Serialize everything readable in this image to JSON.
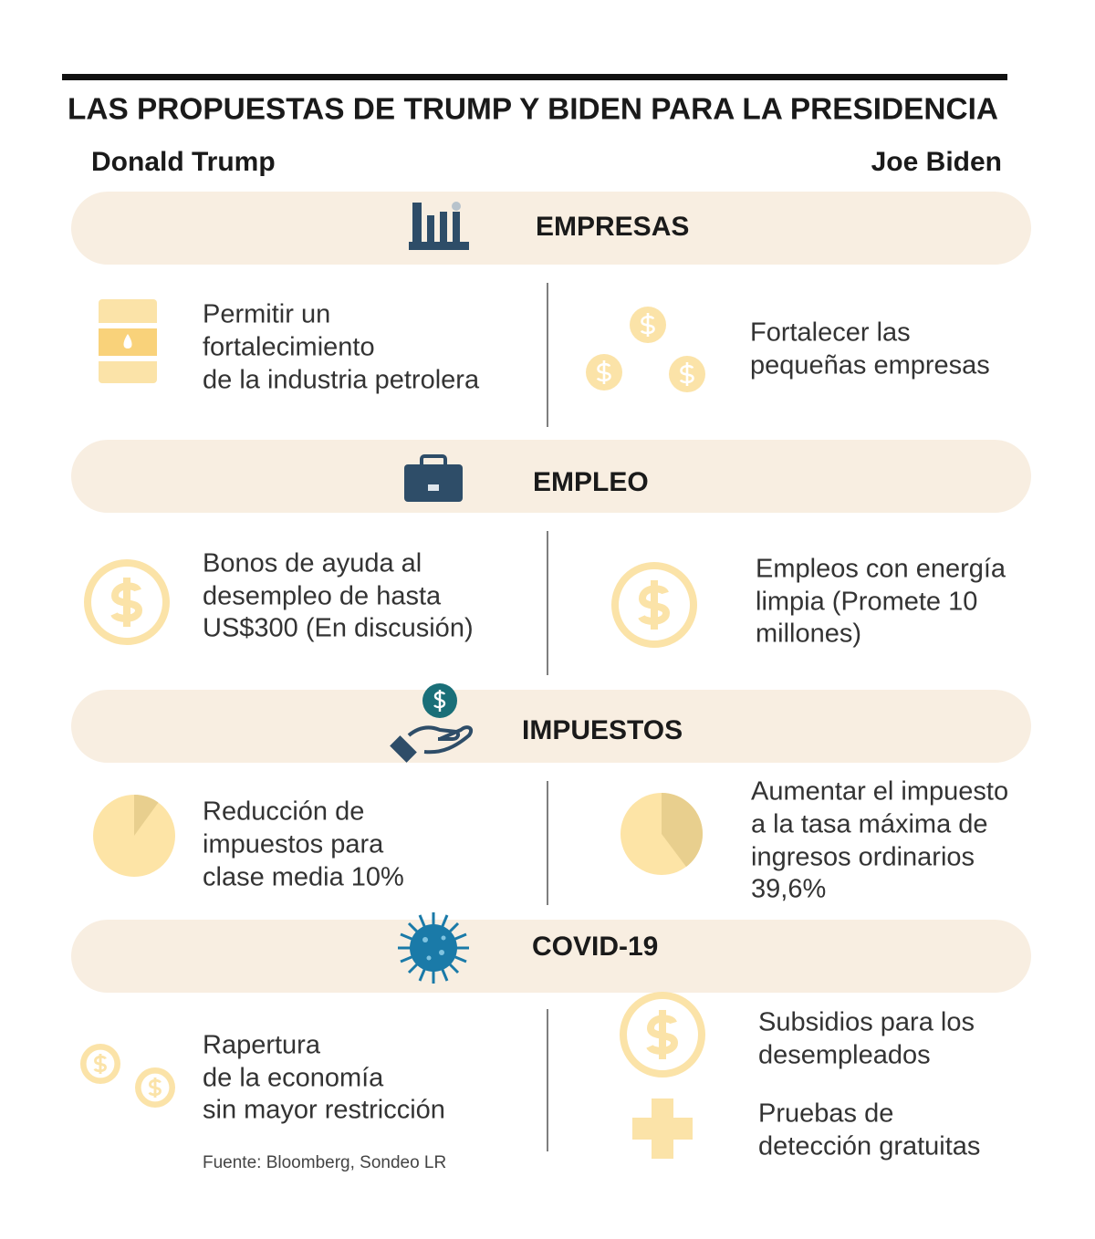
{
  "title": "LAS PROPUESTAS DE TRUMP Y BIDEN PARA LA PRESIDENCIA",
  "columns": [
    "Donald Trump",
    "Joe Biden"
  ],
  "sections": [
    {
      "name": "EMPRESAS",
      "trump": [
        "Permitir un",
        "fortalecimiento",
        "de la industria petrolera"
      ],
      "biden": [
        [
          "Fortalecer las",
          "pequeñas empresas"
        ]
      ]
    },
    {
      "name": "EMPLEO",
      "trump": [
        "Bonos de ayuda al",
        "desempleo de hasta",
        "US$300 (En discusión)"
      ],
      "biden": [
        [
          "Empleos con energía",
          "limpia (Promete 10",
          "millones)"
        ]
      ]
    },
    {
      "name": "IMPUESTOS",
      "trump": [
        "Reducción de",
        "impuestos para",
        "clase media 10%"
      ],
      "biden": [
        [
          "Aumentar el impuesto",
          "a la tasa máxima de",
          "ingresos ordinarios",
          "39,6%"
        ]
      ]
    },
    {
      "name": "COVID-19",
      "trump": [
        "Rapertura",
        "de la economía",
        "sin mayor restricción"
      ],
      "biden": [
        [
          "Subsidios para los",
          "desempleados"
        ],
        [
          "Pruebas de",
          "detección gratuitas"
        ]
      ]
    }
  ],
  "source": "Fuente: Bloomberg, Sondeo LR"
}
